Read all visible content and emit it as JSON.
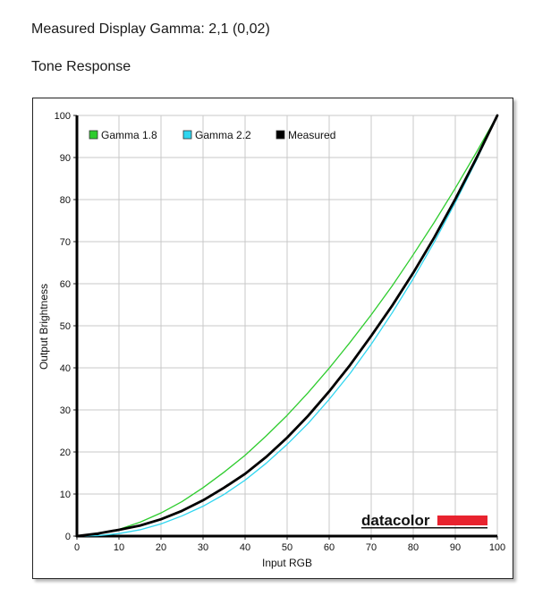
{
  "page": {
    "measured_heading": "Measured Display Gamma: 2,1 (0,02)",
    "section_heading": "Tone Response"
  },
  "logo": {
    "text": "datacolor",
    "bar_color": "#e8232f"
  },
  "chart_data": {
    "type": "line",
    "xlabel": "Input RGB",
    "ylabel": "Output Brightness",
    "xlim": [
      0,
      100
    ],
    "ylim": [
      0,
      100
    ],
    "xticks": [
      0,
      10,
      20,
      30,
      40,
      50,
      60,
      70,
      80,
      90,
      100
    ],
    "yticks": [
      0,
      10,
      20,
      30,
      40,
      50,
      60,
      70,
      80,
      90,
      100
    ],
    "grid": true,
    "legend_position": "top-left",
    "series": [
      {
        "name": "Gamma 1.8",
        "color": "#2ecc2e",
        "x": [
          0,
          5,
          10,
          15,
          20,
          25,
          30,
          35,
          40,
          45,
          50,
          55,
          60,
          65,
          70,
          75,
          80,
          85,
          90,
          95,
          100
        ],
        "y": [
          0,
          0.5,
          1.6,
          3.3,
          5.5,
          8.2,
          11.5,
          15.2,
          19.2,
          23.8,
          28.7,
          34.1,
          39.9,
          46.1,
          52.6,
          59.5,
          66.9,
          74.6,
          82.7,
          91.2,
          100
        ]
      },
      {
        "name": "Gamma 2.2",
        "color": "#2fd6f0",
        "x": [
          0,
          5,
          10,
          15,
          20,
          25,
          30,
          35,
          40,
          45,
          50,
          55,
          60,
          65,
          70,
          75,
          80,
          85,
          90,
          95,
          100
        ],
        "y": [
          0,
          0.1,
          0.6,
          1.5,
          2.9,
          4.8,
          7.1,
          9.9,
          13.3,
          17.3,
          21.8,
          26.8,
          32.5,
          38.7,
          45.6,
          53.1,
          61.2,
          69.9,
          79.3,
          89.3,
          100
        ]
      },
      {
        "name": "Measured",
        "color": "#000000",
        "x": [
          0,
          5,
          10,
          15,
          20,
          25,
          30,
          35,
          40,
          45,
          50,
          55,
          60,
          65,
          70,
          75,
          80,
          85,
          90,
          95,
          100
        ],
        "y": [
          0,
          0.6,
          1.5,
          2.5,
          4.0,
          6.0,
          8.5,
          11.5,
          14.8,
          18.8,
          23.4,
          28.6,
          34.4,
          40.7,
          47.6,
          54.8,
          62.6,
          71.0,
          80.1,
          89.8,
          100
        ]
      }
    ]
  }
}
